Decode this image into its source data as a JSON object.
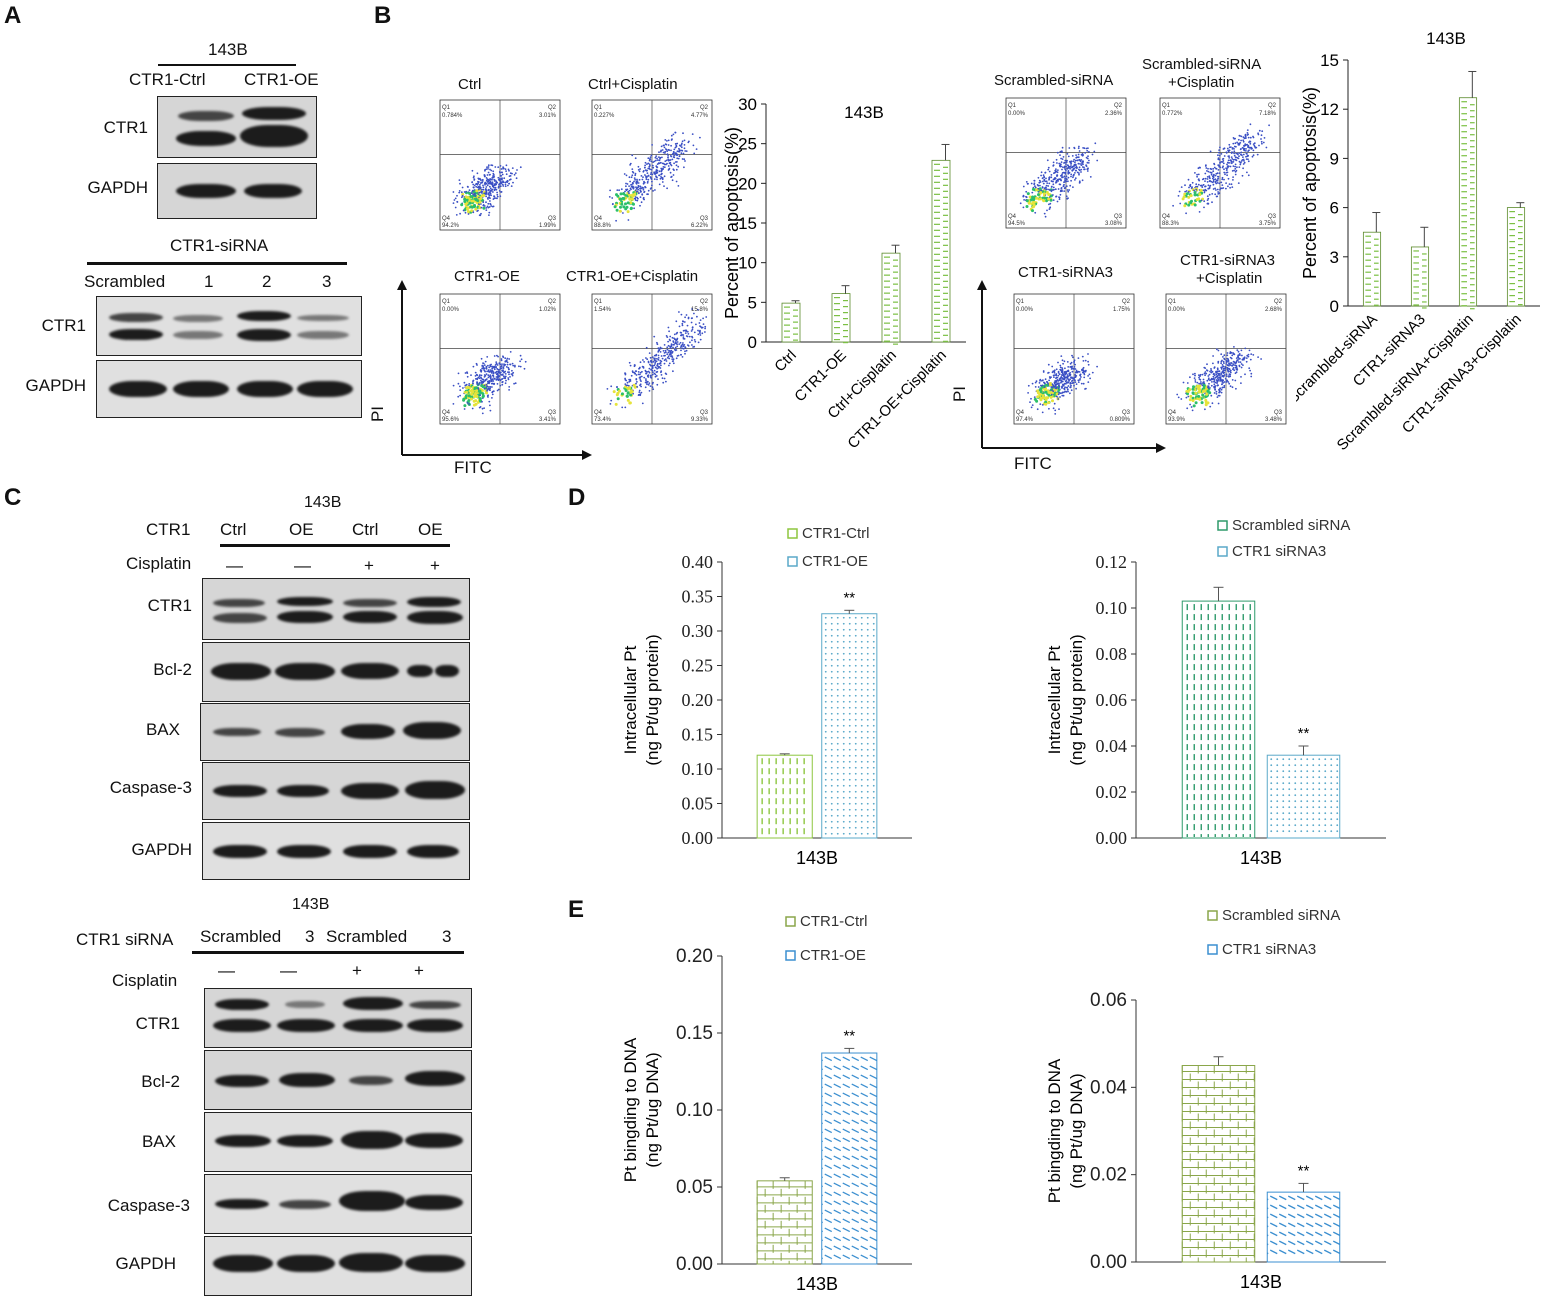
{
  "panels": {
    "A": "A",
    "B": "B",
    "C": "C",
    "D": "D",
    "E": "E"
  },
  "panelA": {
    "cell_line": "143B",
    "top_lanes": [
      "CTR1-Ctrl",
      "CTR1-OE"
    ],
    "top_rows": [
      "CTR1",
      "GAPDH"
    ],
    "sirna_title": "CTR1-siRNA",
    "bottom_lanes": [
      "Scrambled",
      "1",
      "2",
      "3"
    ],
    "bottom_rows": [
      "CTR1",
      "GAPDH"
    ]
  },
  "panelB": {
    "flow_left": {
      "titles": [
        "Ctrl",
        "Ctrl+Cisplatin",
        "CTR1-OE",
        "CTR1-OE+Cisplatin"
      ],
      "quad_values": [
        {
          "Q1": "0.784%",
          "Q2": "3.01%",
          "Q3": "1.99%",
          "Q4": "94.2%"
        },
        {
          "Q1": "0.227%",
          "Q2": "4.77%",
          "Q3": "6.22%",
          "Q4": "88.8%"
        },
        {
          "Q1": "0.00%",
          "Q2": "1.02%",
          "Q3": "3.41%",
          "Q4": "95.6%"
        },
        {
          "Q1": "1.54%",
          "Q2": "15.8%",
          "Q3": "9.33%",
          "Q4": "73.4%"
        }
      ],
      "yaxis": "PI",
      "xaxis": "FITC"
    },
    "flow_right": {
      "titles": [
        "Scrambled-siRNA",
        "Scrambled-siRNA",
        "CTR1-siRNA3",
        "CTR1-siRNA3"
      ],
      "titles2": [
        "",
        "+Cisplatin",
        "",
        "+Cisplatin"
      ],
      "quad_values": [
        {
          "Q1": "0.00%",
          "Q2": "2.36%",
          "Q3": "3.08%",
          "Q4": "94.5%"
        },
        {
          "Q1": "0.772%",
          "Q2": "7.18%",
          "Q3": "3.75%",
          "Q4": "88.3%"
        },
        {
          "Q1": "0.00%",
          "Q2": "1.75%",
          "Q3": "0.809%",
          "Q4": "97.4%"
        },
        {
          "Q1": "0.00%",
          "Q2": "2.68%",
          "Q3": "3.48%",
          "Q4": "93.9%"
        }
      ],
      "yaxis": "PI",
      "xaxis": "FITC"
    },
    "quad_labels": [
      "Q1",
      "Q2",
      "Q3",
      "Q4"
    ]
  },
  "panelC": {
    "top": {
      "cell_line": "143B",
      "row_label_ctr1": "CTR1",
      "lanes": [
        "Ctrl",
        "OE",
        "Ctrl",
        "OE"
      ],
      "cis_label": "Cisplatin",
      "cis": [
        "—",
        "—",
        "+",
        "+"
      ],
      "rows": [
        "CTR1",
        "Bcl-2",
        "BAX",
        "Caspase-3",
        "GAPDH"
      ]
    },
    "bottom": {
      "cell_line": "143B",
      "row_label": "CTR1 siRNA",
      "lanes": [
        "Scrambled",
        "3",
        "Scrambled",
        "3"
      ],
      "cis_label": "Cisplatin",
      "cis": [
        "—",
        "—",
        "+",
        "+"
      ],
      "rows": [
        "CTR1",
        "Bcl-2",
        "BAX",
        "Caspase-3",
        "GAPDH"
      ]
    }
  },
  "chart_data": [
    {
      "type": "bar",
      "title": "143B",
      "categories": [
        "Ctrl",
        "CTR1-OE",
        "Ctrl+Cisplatin",
        "CTR1-OE+Cisplatin"
      ],
      "values": [
        4.9,
        6.1,
        11.2,
        22.9
      ],
      "errors": [
        0.3,
        1.0,
        1.0,
        2.0
      ],
      "ylabel": "Percent of apoptosis(%)",
      "ylim": [
        0,
        30
      ],
      "yticks": [
        0,
        5,
        10,
        15,
        20,
        25,
        30
      ],
      "color": "#7bc043"
    },
    {
      "type": "bar",
      "title": "143B",
      "categories": [
        "Scrambled-siRNA",
        "CTR1-siRNA3",
        "Scrambled-siRNA+Cisplatin",
        "CTR1-siRNA3+Cisplatin"
      ],
      "values": [
        4.5,
        3.6,
        12.7,
        6.0
      ],
      "errors": [
        1.2,
        1.2,
        1.6,
        0.3
      ],
      "ylabel": "Percent of apoptosis(%)",
      "ylim": [
        0,
        15
      ],
      "yticks": [
        0,
        3,
        6,
        9,
        12,
        15
      ],
      "color": "#7bc043"
    },
    {
      "type": "bar",
      "categories": [
        "143B"
      ],
      "series": [
        {
          "name": "CTR1-Ctrl",
          "values": [
            0.12
          ],
          "errors": [
            0.002
          ],
          "color": "#8dc63f"
        },
        {
          "name": "CTR1-OE",
          "values": [
            0.325
          ],
          "errors": [
            0.005
          ],
          "color": "#5aa9c9"
        }
      ],
      "annotations": [
        "**"
      ],
      "ylabel": "Intracellular Pt",
      "ylabel2": "(ng Pt/ug protein)",
      "ylim": [
        0,
        0.4
      ],
      "yticks": [
        "0.00",
        "0.05",
        "0.10",
        "0.15",
        "0.20",
        "0.25",
        "0.30",
        "0.35",
        "0.40"
      ],
      "xlabel": "143B",
      "legend": "top"
    },
    {
      "type": "bar",
      "categories": [
        "143B"
      ],
      "series": [
        {
          "name": "Scrambled siRNA",
          "values": [
            0.103
          ],
          "errors": [
            0.006
          ],
          "color": "#2e9a6a"
        },
        {
          "name": "CTR1 siRNA3",
          "values": [
            0.036
          ],
          "errors": [
            0.004
          ],
          "color": "#5aa9c9"
        }
      ],
      "annotations": [
        "**"
      ],
      "ylabel": "Intracellular Pt",
      "ylabel2": "(ng Pt/ug protein)",
      "ylim": [
        0,
        0.12
      ],
      "yticks": [
        "0.00",
        "0.02",
        "0.04",
        "0.06",
        "0.08",
        "0.10",
        "0.12"
      ],
      "xlabel": "143B",
      "legend": "top"
    },
    {
      "type": "bar",
      "categories": [
        "143B"
      ],
      "series": [
        {
          "name": "CTR1-Ctrl",
          "values": [
            0.054
          ],
          "errors": [
            0.002
          ],
          "color": "#8aa64a"
        },
        {
          "name": "CTR1-OE",
          "values": [
            0.137
          ],
          "errors": [
            0.003
          ],
          "color": "#3b8fd0"
        }
      ],
      "annotations": [
        "**"
      ],
      "ylabel": "Pt bingding to DNA",
      "ylabel2": "(ng Pt/ug DNA)",
      "ylim": [
        0,
        0.2
      ],
      "yticks": [
        "0.00",
        "0.05",
        "0.10",
        "0.15",
        "0.20"
      ],
      "xlabel": "143B",
      "legend": "top"
    },
    {
      "type": "bar",
      "categories": [
        "143B"
      ],
      "series": [
        {
          "name": "Scrambled siRNA",
          "values": [
            0.045
          ],
          "errors": [
            0.002
          ],
          "color": "#8aa64a"
        },
        {
          "name": "CTR1 siRNA3",
          "values": [
            0.016
          ],
          "errors": [
            0.002
          ],
          "color": "#3b8fd0"
        }
      ],
      "annotations": [
        "**"
      ],
      "ylabel": "Pt bingding to DNA",
      "ylabel2": "(ng Pt/ug DNA)",
      "ylim": [
        0,
        0.06
      ],
      "yticks": [
        "0.00",
        "0.02",
        "0.04",
        "0.06"
      ],
      "xlabel": "143B",
      "legend": "top"
    }
  ]
}
